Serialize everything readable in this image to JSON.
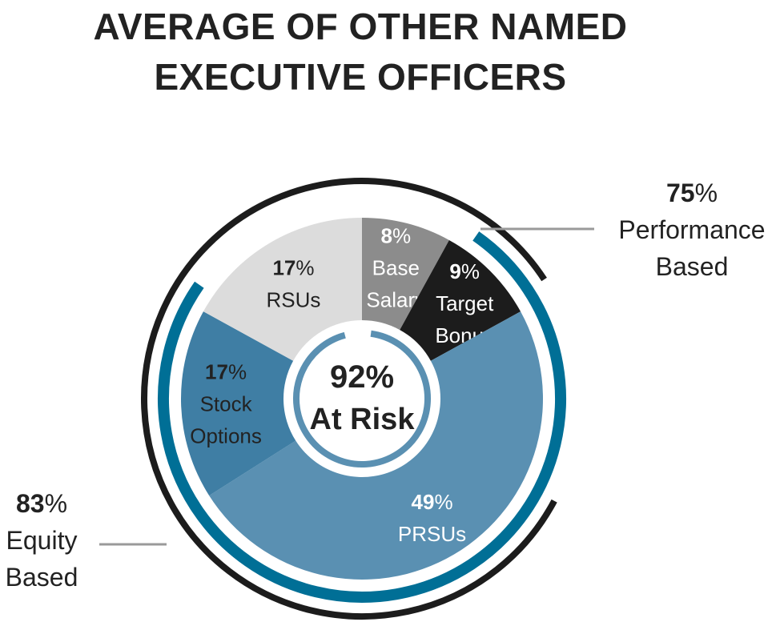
{
  "title": {
    "line1": "AVERAGE OF OTHER NAMED",
    "line2": "EXECUTIVE OFFICERS"
  },
  "chart_data": {
    "type": "pie",
    "title": "AVERAGE OF OTHER NAMED EXECUTIVE OFFICERS",
    "slices": [
      {
        "label_lines": [
          "Base",
          "Salary"
        ],
        "value": 8,
        "value_text": "8",
        "color": "#8c8c8c",
        "text_color": "#ffffff"
      },
      {
        "label_lines": [
          "Target",
          "Bonus"
        ],
        "value": 9,
        "value_text": "9",
        "color": "#1c1c1c",
        "text_color": "#ffffff"
      },
      {
        "label_lines": [
          "PRSUs"
        ],
        "value": 49,
        "value_text": "49",
        "color": "#5a90b2",
        "text_color": "#ffffff"
      },
      {
        "label_lines": [
          "Stock",
          "Options"
        ],
        "value": 17,
        "value_text": "17",
        "color": "#3f7ea4",
        "text_color": "#222222"
      },
      {
        "label_lines": [
          "RSUs"
        ],
        "value": 17,
        "value_text": "17",
        "color": "#dcdcdc",
        "text_color": "#222222"
      }
    ],
    "center": {
      "value_text": "92%",
      "label": "At Risk",
      "ring_color": "#5a90b2"
    },
    "arcs": [
      {
        "name": "Performance Based",
        "value": 75,
        "value_text": "75",
        "label_lines": [
          "Performance",
          "Based"
        ],
        "color": "#006f96"
      },
      {
        "name": "Equity Based",
        "value": 83,
        "value_text": "83",
        "label_lines": [
          "Equity",
          "Based"
        ],
        "color": "#1c1c1c"
      }
    ],
    "connector_color": "#9a9a9a"
  }
}
